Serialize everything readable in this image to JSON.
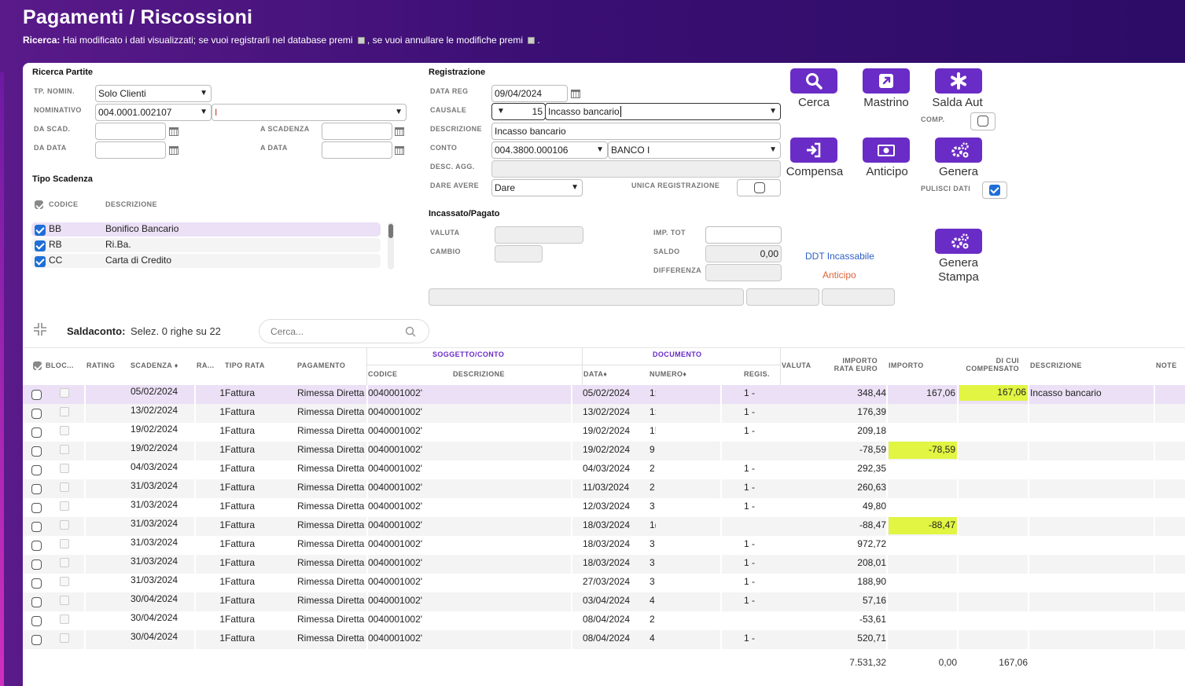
{
  "header": {
    "title": "Pagamenti / Riscossioni",
    "ricerca_label": "Ricerca:",
    "ricerca_text_1": "Hai modificato i dati visualizzati; se vuoi registrarli nel database premi",
    "ricerca_text_2": ", se vuoi annullare le modifiche premi",
    "ricerca_text_3": "."
  },
  "ricerca_partite": {
    "title": "Ricerca Partite",
    "tp_nomin_label": "TP. NOMIN.",
    "tp_nomin_value": "Solo Clienti",
    "nominativo_label": "NOMINATIVO",
    "nominativo_code": "004.0001.002107",
    "nominativo_name": "I",
    "da_scad_label": "DA SCAD.",
    "a_scadenza_label": "A SCADENZA",
    "da_data_label": "DA DATA",
    "a_data_label": "A DATA"
  },
  "tipo_scadenza": {
    "title": "Tipo Scadenza",
    "col_codice": "CODICE",
    "col_descrizione": "DESCRIZIONE",
    "items": [
      {
        "code": "BB",
        "desc": "Bonifico Bancario"
      },
      {
        "code": "RB",
        "desc": "Ri.Ba."
      },
      {
        "code": "CC",
        "desc": "Carta di Credito"
      }
    ]
  },
  "registrazione": {
    "title": "Registrazione",
    "data_reg_label": "DATA REG",
    "data_reg_value": "09/04/2024",
    "causale_label": "CAUSALE",
    "causale_code": "15",
    "causale_desc": "Incasso bancario",
    "descrizione_label": "DESCRIZIONE",
    "descrizione_value": "Incasso bancario",
    "conto_label": "CONTO",
    "conto_code": "004.3800.000106",
    "conto_name": "BANCO I",
    "desc_agg_label": "DESC. AGG.",
    "dare_avere_label": "DARE AVERE",
    "dare_avere_value": "Dare",
    "unica_label": "UNICA REGISTRAZIONE"
  },
  "incassato": {
    "title": "Incassato/Pagato",
    "valuta_label": "VALUTA",
    "cambio_label": "CAMBIO",
    "imp_tot_label": "IMP. TOT",
    "saldo_label": "SALDO",
    "saldo_value": "0,00",
    "differenza_label": "DIFFERENZA",
    "ddt_link": "DDT Incassabile",
    "anticipo_link": "Anticipo"
  },
  "actions": {
    "cerca": "Cerca",
    "mastrino": "Mastrino",
    "salda_aut": "Salda Aut",
    "comp_label": "COMP.",
    "compensa": "Compensa",
    "anticipo": "Anticipo",
    "genera": "Genera",
    "pulisci_label": "PULISCI DATI",
    "genera_stampa_1": "Genera",
    "genera_stampa_2": "Stampa"
  },
  "saldaconto": {
    "label": "Saldaconto:",
    "info": "Selez. 0 righe su 22",
    "search_placeholder": "Cerca..."
  },
  "table": {
    "headers": {
      "bloc": "BLOC...",
      "rating": "RATING",
      "scadenza": "SCADENZA",
      "ra": "RA...",
      "tipo_rata": "TIPO RATA",
      "pagamento": "PAGAMENTO",
      "soggetto": "SOGGETTO/CONTO",
      "codice": "CODICE",
      "descrizione": "DESCRIZIONE",
      "documento": "DOCUMENTO",
      "data": "DATA",
      "numero": "NUMERO",
      "regis": "REGIS.",
      "valuta": "VALUTA",
      "importo_rata_1": "IMPORTO",
      "importo_rata_2": "RATA EURO",
      "importo": "IMPORTO",
      "di_cui_1": "DI CUI",
      "di_cui_2": "COMPENSATO",
      "descrizione2": "DESCRIZIONE",
      "note": "NOTE"
    },
    "rows": [
      {
        "scad": "05/02/2024",
        "ra": "1",
        "tipo": "Fattura",
        "pag": "Rimessa Diretta",
        "cod": "0040001002'",
        "data": "05/02/2024",
        "num": "1:",
        "reg": "1 -",
        "imp_rata": "348,44",
        "importo": "167,06",
        "dicui": "167,06",
        "desc": "Incasso bancario"
      },
      {
        "scad": "13/02/2024",
        "ra": "1",
        "tipo": "Fattura",
        "pag": "Rimessa Diretta",
        "cod": "0040001002'",
        "data": "13/02/2024",
        "num": "1:",
        "reg": "1 -",
        "imp_rata": "176,39",
        "importo": "",
        "dicui": "",
        "desc": ""
      },
      {
        "scad": "19/02/2024",
        "ra": "1",
        "tipo": "Fattura",
        "pag": "Rimessa Diretta",
        "cod": "0040001002'",
        "data": "19/02/2024",
        "num": "1!",
        "reg": "1 -",
        "imp_rata": "209,18",
        "importo": "",
        "dicui": "",
        "desc": ""
      },
      {
        "scad": "19/02/2024",
        "ra": "1",
        "tipo": "Fattura",
        "pag": "Rimessa Diretta",
        "cod": "0040001002'",
        "data": "19/02/2024",
        "num": "9",
        "reg": "",
        "imp_rata": "-78,59",
        "importo": "-78,59",
        "dicui": "",
        "desc": ""
      },
      {
        "scad": "04/03/2024",
        "ra": "1",
        "tipo": "Fattura",
        "pag": "Rimessa Diretta",
        "cod": "0040001002'",
        "data": "04/03/2024",
        "num": "2",
        "reg": "1 -",
        "imp_rata": "292,35",
        "importo": "",
        "dicui": "",
        "desc": ""
      },
      {
        "scad": "31/03/2024",
        "ra": "1",
        "tipo": "Fattura",
        "pag": "Rimessa Diretta",
        "cod": "0040001002'",
        "data": "11/03/2024",
        "num": "2",
        "reg": "1 -",
        "imp_rata": "260,63",
        "importo": "",
        "dicui": "",
        "desc": ""
      },
      {
        "scad": "31/03/2024",
        "ra": "1",
        "tipo": "Fattura",
        "pag": "Rimessa Diretta",
        "cod": "0040001002'",
        "data": "12/03/2024",
        "num": "3",
        "reg": "1 -",
        "imp_rata": "49,80",
        "importo": "",
        "dicui": "",
        "desc": ""
      },
      {
        "scad": "31/03/2024",
        "ra": "1",
        "tipo": "Fattura",
        "pag": "Rimessa Diretta",
        "cod": "0040001002'",
        "data": "18/03/2024",
        "num": "1(",
        "reg": "",
        "imp_rata": "-88,47",
        "importo": "-88,47",
        "dicui": "",
        "desc": ""
      },
      {
        "scad": "31/03/2024",
        "ra": "1",
        "tipo": "Fattura",
        "pag": "Rimessa Diretta",
        "cod": "0040001002'",
        "data": "18/03/2024",
        "num": "3",
        "reg": "1 -",
        "imp_rata": "972,72",
        "importo": "",
        "dicui": "",
        "desc": ""
      },
      {
        "scad": "31/03/2024",
        "ra": "1",
        "tipo": "Fattura",
        "pag": "Rimessa Diretta",
        "cod": "0040001002'",
        "data": "18/03/2024",
        "num": "3",
        "reg": "1 -",
        "imp_rata": "208,01",
        "importo": "",
        "dicui": "",
        "desc": ""
      },
      {
        "scad": "31/03/2024",
        "ra": "1",
        "tipo": "Fattura",
        "pag": "Rimessa Diretta",
        "cod": "0040001002'",
        "data": "27/03/2024",
        "num": "3",
        "reg": "1 -",
        "imp_rata": "188,90",
        "importo": "",
        "dicui": "",
        "desc": ""
      },
      {
        "scad": "30/04/2024",
        "ra": "1",
        "tipo": "Fattura",
        "pag": "Rimessa Diretta",
        "cod": "0040001002'",
        "data": "03/04/2024",
        "num": "4",
        "reg": "1 -",
        "imp_rata": "57,16",
        "importo": "",
        "dicui": "",
        "desc": ""
      },
      {
        "scad": "30/04/2024",
        "ra": "1",
        "tipo": "Fattura",
        "pag": "Rimessa Diretta",
        "cod": "0040001002'",
        "data": "08/04/2024",
        "num": "2",
        "reg": "",
        "imp_rata": "-53,61",
        "importo": "",
        "dicui": "",
        "desc": ""
      },
      {
        "scad": "30/04/2024",
        "ra": "1",
        "tipo": "Fattura",
        "pag": "Rimessa Diretta",
        "cod": "0040001002'",
        "data": "08/04/2024",
        "num": "4",
        "reg": "1 -",
        "imp_rata": "520,71",
        "importo": "",
        "dicui": "",
        "desc": ""
      }
    ],
    "totals": {
      "imp_rata": "7.531,32",
      "importo": "0,00",
      "dicui": "167,06"
    },
    "highlight_color": "#e1f542"
  }
}
